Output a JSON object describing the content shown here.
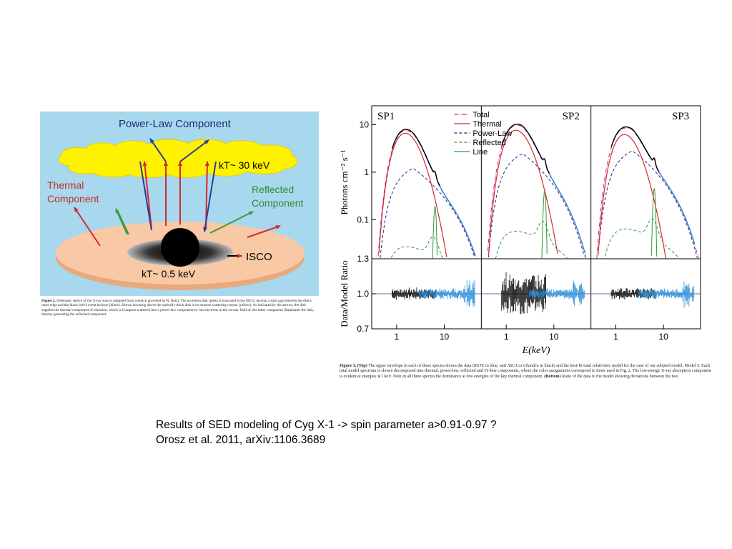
{
  "left_figure": {
    "labels": {
      "power_law": "Power-Law Component",
      "kt_corona": "kT~ 30 keV",
      "thermal_line1": "Thermal",
      "thermal_line2": "Component",
      "reflected_line1": "Reflected",
      "reflected_line2": "Component",
      "isco": "ISCO",
      "kt_disk": "kT~ 0.5 keV"
    },
    "colors": {
      "background": "#a8d8ee",
      "corona": "#fff200",
      "disk": "#f8c9a4",
      "thermal_arrow": "#d42a2a",
      "powerlaw_arrow": "#2a3d9c",
      "reflected_arrow": "#3a9c3a"
    },
    "caption": {
      "label": "Figure 2.",
      "text": "Schematic sketch of the X-ray source (adapted from a sketch provided by R. Reis). The accretion disk (pink) is truncated at the ISCO, leaving a dark gap between the disk's inner edge and the black hole's event horizon (black). Shown hovering above the optically-thick disk is its tenuous scattering corona (yellow). As indicated by the arrows, the disk supplies the thermal component of emission, which is Compton scattered into a power-law component by hot electrons in the corona. Half of this latter component illuminates the disk, thereby generating the reflected component."
    }
  },
  "chart_data": {
    "type": "line",
    "xlabel": "E(keV)",
    "ylabel_top": "Photons cm⁻² s⁻¹",
    "ylabel_bottom": "Data/Model Ratio",
    "x_scale": "log",
    "xlim": [
      0.3,
      60
    ],
    "xticks": [
      "1",
      "10"
    ],
    "top_ylim": [
      0.015,
      25
    ],
    "top_yticks": [
      "10",
      "1",
      "0.1"
    ],
    "bottom_ylim": [
      0.7,
      1.3
    ],
    "bottom_yticks": [
      "1.3",
      "1.0",
      "0.7"
    ],
    "panels": [
      "SP1",
      "SP2",
      "SP3"
    ],
    "legend": [
      "Total",
      "Thermal",
      "Power-Law",
      "Reflected",
      "Line"
    ],
    "legend_position": "top-left of SP2",
    "series_colors": {
      "Total": "#c0307a",
      "Thermal": "#d42a2a",
      "Power-Law": "#23238a",
      "Reflected": "#2a9c3a",
      "Line": "#2a9c3a",
      "data_rxte": "#2a8fd8",
      "data_asca": "#000000"
    }
  },
  "right_figure": {
    "caption": {
      "label": "Figure 3.",
      "top": "(Top)",
      "text1": " The upper envelope in each of these spectra shows the data (",
      "rxte": "RXTE",
      "text2": " in blue; and ",
      "asca": "ASCA",
      "text3": " or ",
      "chandra": "Chandra",
      "text4": " in black) and the best-fit total relativistic model for the case of our adopted model, Model 5. Each total model spectrum is shown decomposed into thermal, power-law, reflected and Fe-line components, where the color assignments correspond to those used in Fig. 2. The low-energy X-ray absorption component is evident at energies ≲1 keV. Note in all three spectra the dominance at low energies of the key thermal component. ",
      "bottom": "(Bottom)",
      "text5": " Ratio of the data to the model showing deviations between the two."
    }
  },
  "slide_text": {
    "line1": "Results of SED modeling of Cyg X-1 -> spin parameter a>0.91-0.97 ?",
    "line2": "Orosz et al. 2011, arXiv:1106.3689"
  }
}
